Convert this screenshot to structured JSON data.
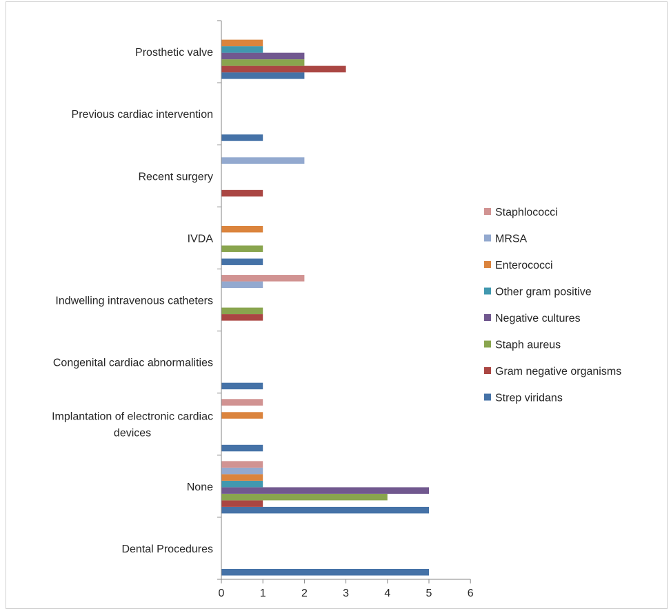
{
  "chart_data": {
    "type": "bar",
    "orientation": "horizontal",
    "title": "",
    "xlabel": "",
    "ylabel": "",
    "xlim": [
      0,
      6
    ],
    "x_ticks": [
      0,
      1,
      2,
      3,
      4,
      5,
      6
    ],
    "grid": false,
    "legend_position": "right",
    "categories": [
      "Dental Procedures",
      "None",
      "Implantation of electronic cardiac devices",
      "Congenital cardiac abnormalities",
      "Indwelling intravenous catheters",
      "IVDA",
      "Recent surgery",
      "Previous cardiac intervention",
      "Prosthetic valve"
    ],
    "series": [
      {
        "name": "Strep viridans",
        "color": "#4572A7",
        "values": [
          5,
          5,
          1,
          1,
          0,
          1,
          0,
          1,
          2
        ]
      },
      {
        "name": "Gram negative organisms",
        "color": "#AA4643",
        "values": [
          0,
          1,
          0,
          0,
          1,
          0,
          1,
          0,
          3
        ]
      },
      {
        "name": "Staph aureus",
        "color": "#89A54E",
        "values": [
          0,
          4,
          0,
          0,
          1,
          1,
          0,
          0,
          2
        ]
      },
      {
        "name": "Negative cultures",
        "color": "#71588F",
        "values": [
          0,
          5,
          0,
          0,
          0,
          0,
          0,
          0,
          2
        ]
      },
      {
        "name": "Other gram positive",
        "color": "#4198AF",
        "values": [
          0,
          1,
          0,
          0,
          0,
          0,
          0,
          0,
          1
        ]
      },
      {
        "name": "Enterococci",
        "color": "#DB843D",
        "values": [
          0,
          1,
          1,
          0,
          0,
          1,
          0,
          0,
          1
        ]
      },
      {
        "name": "MRSA",
        "color": "#93A9CF",
        "values": [
          0,
          1,
          0,
          0,
          1,
          0,
          2,
          0,
          0
        ]
      },
      {
        "name": "Staphlococci",
        "color": "#D19392",
        "values": [
          0,
          1,
          1,
          0,
          2,
          0,
          0,
          0,
          0
        ]
      }
    ]
  }
}
